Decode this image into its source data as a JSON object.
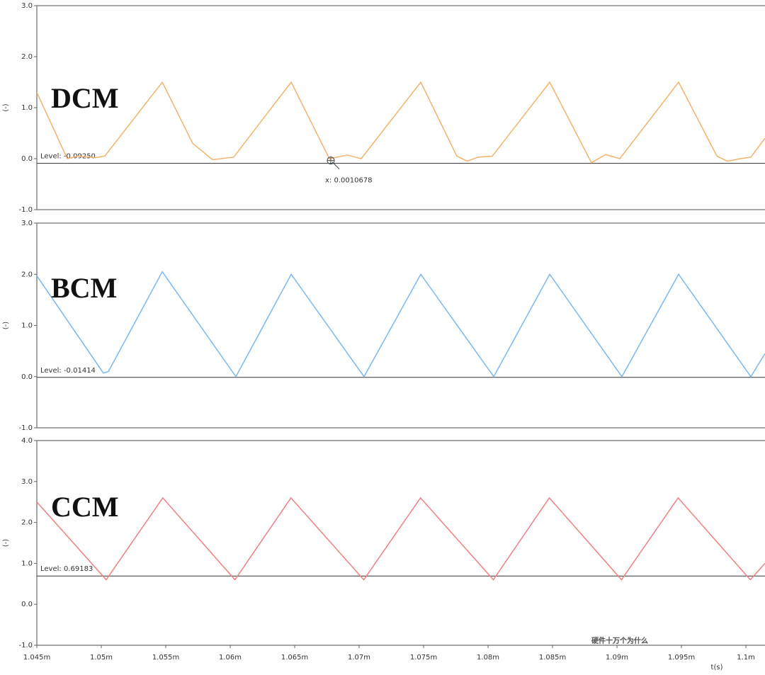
{
  "chart_data": [
    {
      "type": "line",
      "annotation": "DCM",
      "ylabel": "(-)",
      "xlim": [
        0.001045,
        0.00110148
      ],
      "ylim": [
        -1,
        3
      ],
      "yticks": [
        {
          "value": -1,
          "label": "-1.0"
        },
        {
          "value": 0,
          "label": "0.0"
        },
        {
          "value": 1,
          "label": "1.0"
        },
        {
          "value": 2,
          "label": "2.0"
        },
        {
          "value": 3,
          "label": "3.0"
        }
      ],
      "level_text": "Level:",
      "level": {
        "value": -0.0925,
        "label": "-0.09250"
      },
      "cursor": {
        "x": 0.0010678,
        "label": "x: 0.0010678"
      },
      "x": [
        0.001045,
        0.00104736,
        0.00104819,
        0.00104956,
        0.00105027,
        0.00105473,
        0.00105709,
        0.00105863,
        0.00106027,
        0.00106473,
        0.00106769,
        0.00106907,
        0.00107016,
        0.00107478,
        0.00107758,
        0.0010784,
        0.00107923,
        0.00108033,
        0.00108478,
        0.00108802,
        0.00108912,
        0.00109022,
        0.00109478,
        0.00109775,
        0.00109857,
        0.00109956,
        0.00110038,
        0.00110148
      ],
      "series": [
        {
          "color": "#f5b26b",
          "values": [
            1.3,
            0.0,
            0.05,
            0.02,
            0.05,
            1.5,
            0.3,
            -0.02,
            0.03,
            1.5,
            0.0,
            0.07,
            0.0,
            1.5,
            0.05,
            -0.05,
            0.03,
            0.05,
            1.5,
            -0.08,
            0.08,
            0.0,
            1.5,
            0.05,
            -0.05,
            0.0,
            0.03,
            0.4
          ]
        }
      ]
    },
    {
      "type": "line",
      "annotation": "BCM",
      "ylabel": "(-)",
      "xlim": [
        0.001045,
        0.00110148
      ],
      "ylim": [
        -1,
        3
      ],
      "yticks": [
        {
          "value": -1,
          "label": "-1.0"
        },
        {
          "value": 0,
          "label": "0.0"
        },
        {
          "value": 1,
          "label": "1.0"
        },
        {
          "value": 2,
          "label": "2.0"
        },
        {
          "value": 3,
          "label": "3.0"
        }
      ],
      "level_text": "Level:",
      "level": -0.01414,
      "x": [
        0.001045,
        0.00105016,
        0.00105055,
        0.00105473,
        0.00106044,
        0.00106473,
        0.00107038,
        0.00107478,
        0.00108044,
        0.00108478,
        0.00109038,
        0.00109478,
        0.00110038,
        0.00110148
      ],
      "series": [
        {
          "color": "#7ab8f0",
          "values": [
            1.97,
            0.07,
            0.1,
            2.05,
            0.0,
            2.0,
            0.0,
            2.0,
            0.0,
            2.0,
            0.0,
            2.0,
            0.0,
            0.45
          ]
        }
      ]
    },
    {
      "type": "line",
      "annotation": "CCM",
      "ylabel": "(-)",
      "xlabel": "t(s)",
      "xlim": [
        0.001045,
        0.00110148
      ],
      "ylim": [
        -1,
        4
      ],
      "yticks": [
        {
          "value": -1,
          "label": "-1.0"
        },
        {
          "value": 0,
          "label": "0.0"
        },
        {
          "value": 1,
          "label": "1.0"
        },
        {
          "value": 2,
          "label": "2.0"
        },
        {
          "value": 3,
          "label": "3.0"
        },
        {
          "value": 4,
          "label": "4.0"
        }
      ],
      "xticks": [
        {
          "value": 0.001045,
          "label": "1.045m"
        },
        {
          "value": 0.00105,
          "label": "1.05m"
        },
        {
          "value": 0.001055,
          "label": "1.055m"
        },
        {
          "value": 0.00106,
          "label": "1.06m"
        },
        {
          "value": 0.001065,
          "label": "1.065m"
        },
        {
          "value": 0.00107,
          "label": "1.07m"
        },
        {
          "value": 0.001075,
          "label": "1.075m"
        },
        {
          "value": 0.00108,
          "label": "1.08m"
        },
        {
          "value": 0.001085,
          "label": "1.085m"
        },
        {
          "value": 0.00109,
          "label": "1.09m"
        },
        {
          "value": 0.001095,
          "label": "1.095m"
        },
        {
          "value": 0.0011,
          "label": "1.1m"
        }
      ],
      "level_text": "Level:",
      "level": 0.69183,
      "x": [
        0.001045,
        0.00105038,
        0.00105477,
        0.00106037,
        0.00106471,
        0.00107036,
        0.00107476,
        0.00108041,
        0.00108475,
        0.00109035,
        0.00109474,
        0.00110034,
        0.00110148
      ],
      "series": [
        {
          "color": "#f08080",
          "values": [
            2.5,
            0.6,
            2.6,
            0.6,
            2.6,
            0.6,
            2.6,
            0.6,
            2.6,
            0.6,
            2.6,
            0.6,
            1.0
          ]
        }
      ]
    }
  ],
  "watermark": "硬件十万个为什么"
}
